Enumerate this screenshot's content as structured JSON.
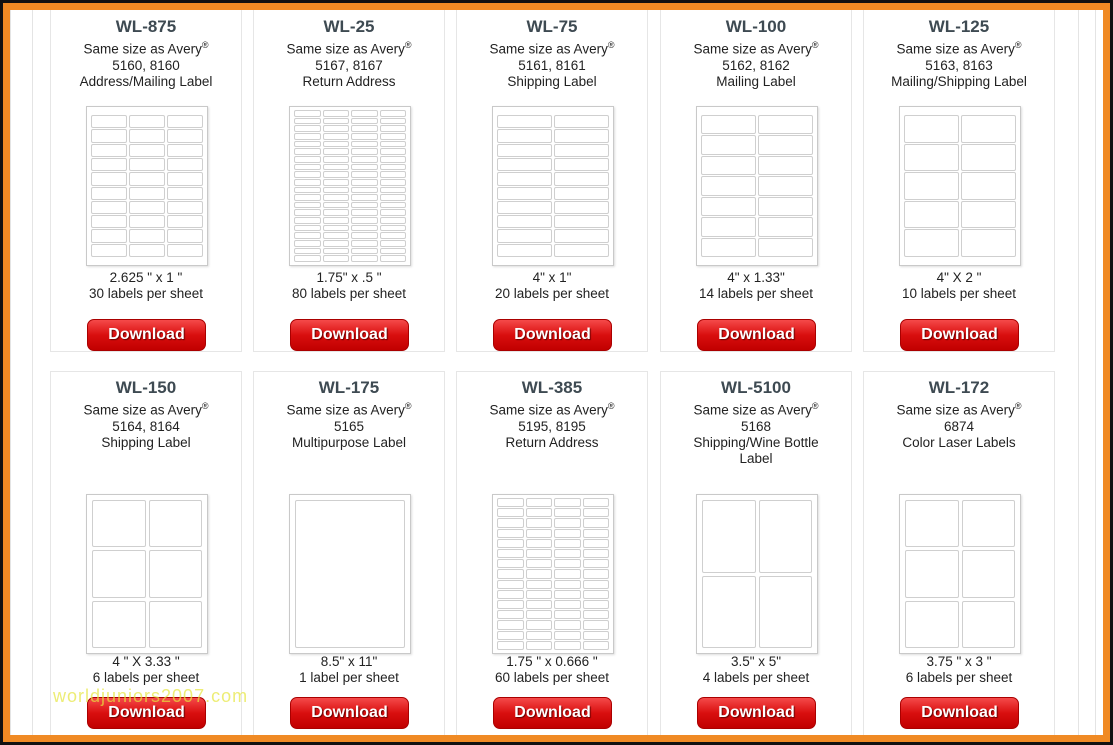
{
  "products": [
    {
      "code": "WL-875",
      "avery_prefix": "Same size as Avery",
      "avery_codes": "5160, 8160",
      "type": "Address/Mailing Label",
      "size": "2.625 \" x 1 \"",
      "count": "30 labels per sheet",
      "grid": {
        "cols": 3,
        "rows": 10
      }
    },
    {
      "code": "WL-25",
      "avery_prefix": "Same size as Avery",
      "avery_codes": "5167, 8167",
      "type": "Return Address",
      "size": "1.75\" x .5 \"",
      "count": "80 labels per sheet",
      "grid": {
        "cols": 4,
        "rows": 20
      }
    },
    {
      "code": "WL-75",
      "avery_prefix": "Same size as Avery",
      "avery_codes": "5161, 8161",
      "type": "Shipping Label",
      "size": "4\" x 1\"",
      "count": "20 labels per sheet",
      "grid": {
        "cols": 2,
        "rows": 10
      }
    },
    {
      "code": "WL-100",
      "avery_prefix": "Same size as Avery",
      "avery_codes": "5162, 8162",
      "type": "Mailing Label",
      "size": "4\" x 1.33\"",
      "count": "14 labels per sheet",
      "grid": {
        "cols": 2,
        "rows": 7
      }
    },
    {
      "code": "WL-125",
      "avery_prefix": "Same size as Avery",
      "avery_codes": "5163, 8163",
      "type": "Mailing/Shipping Label",
      "size": "4\" X 2 \"",
      "count": "10 labels per sheet",
      "grid": {
        "cols": 2,
        "rows": 5
      }
    },
    {
      "code": "WL-150",
      "avery_prefix": "Same size as Avery",
      "avery_codes": "5164, 8164",
      "type": "Shipping Label",
      "size": "4 \" X 3.33 \"",
      "count": "6 labels per sheet",
      "grid": {
        "cols": 2,
        "rows": 3
      }
    },
    {
      "code": "WL-175",
      "avery_prefix": "Same size as Avery",
      "avery_codes": "5165",
      "type": "Multipurpose Label",
      "size": "8.5\" x 11\"",
      "count": "1 label per sheet",
      "grid": {
        "cols": 1,
        "rows": 1
      }
    },
    {
      "code": "WL-385",
      "avery_prefix": "Same size as Avery",
      "avery_codes": "5195, 8195",
      "type": "Return Address",
      "size": "1.75 \" x 0.666 \"",
      "count": "60 labels per sheet",
      "grid": {
        "cols": 4,
        "rows": 15
      }
    },
    {
      "code": "WL-5100",
      "avery_prefix": "Same size as Avery",
      "avery_codes": "5168",
      "type": "Shipping/Wine Bottle Label",
      "size": "3.5\" x 5\"",
      "count": "4 labels per sheet",
      "grid": {
        "cols": 2,
        "rows": 2
      }
    },
    {
      "code": "WL-172",
      "avery_prefix": "Same size as Avery",
      "avery_codes": "6874",
      "type": "Color Laser Labels",
      "size": "3.75 \" x 3 \"",
      "count": "6 labels per sheet",
      "grid": {
        "cols": 2,
        "rows": 3
      }
    }
  ],
  "registered_mark": "®",
  "download_label": "Download",
  "watermark": "worldjuniors2007.com",
  "colors": {
    "border": "#f08a24",
    "button": "#d90f0f",
    "code_text": "#3e4a52"
  }
}
